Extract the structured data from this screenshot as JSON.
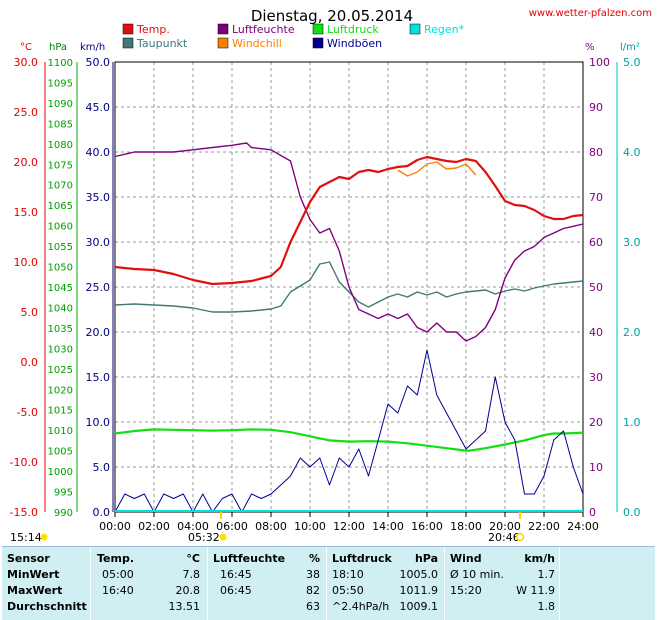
{
  "header": {
    "title": "Dienstag, 20.05.2014",
    "source": "www.wetter-pfalzen.com"
  },
  "legend": [
    {
      "label": "Temp.",
      "color": "#e01010"
    },
    {
      "label": "Luftfeuchte",
      "color": "#800080"
    },
    {
      "label": "Luftdruck",
      "color": "#10e010"
    },
    {
      "label": "Regen*",
      "color": "#00e0e0"
    },
    {
      "label": "Taupunkt",
      "color": "#407878"
    },
    {
      "label": "Windchill",
      "color": "#ff8000"
    },
    {
      "label": "Windböen",
      "color": "#000090"
    }
  ],
  "axes": {
    "temp": {
      "unit": "°C",
      "ticks": [
        "30.0",
        "25.0",
        "20.0",
        "15.0",
        "10.0",
        "5.0",
        "0.0",
        "-5.0",
        "-10.0",
        "-15.0"
      ],
      "range": [
        -15,
        30
      ]
    },
    "pressure": {
      "unit": "hPa",
      "ticks": [
        "1100",
        "1095",
        "1090",
        "1085",
        "1080",
        "1075",
        "1070",
        "1065",
        "1060",
        "1055",
        "1050",
        "1045",
        "1040",
        "1035",
        "1030",
        "1025",
        "1020",
        "1015",
        "1010",
        "1005",
        "1000",
        "995",
        "990"
      ],
      "range": [
        990,
        1100
      ]
    },
    "wind": {
      "unit": "km/h",
      "ticks": [
        "50.0",
        "45.0",
        "40.0",
        "35.0",
        "30.0",
        "25.0",
        "20.0",
        "15.0",
        "10.0",
        "5.0",
        "0.0"
      ],
      "range": [
        0,
        50
      ]
    },
    "humidity": {
      "unit": "%",
      "ticks": [
        "100",
        "90",
        "80",
        "70",
        "60",
        "50",
        "40",
        "30",
        "20",
        "10",
        "0"
      ],
      "range": [
        0,
        100
      ]
    },
    "rain": {
      "unit": "l/m²",
      "ticks": [
        "5.0",
        "4.0",
        "3.0",
        "2.0",
        "1.0",
        "0.0"
      ],
      "range": [
        0,
        5
      ]
    },
    "time": {
      "ticks": [
        "00:00",
        "02:00",
        "04:00",
        "06:00",
        "08:00",
        "10:00",
        "12:00",
        "14:00",
        "16:00",
        "18:00",
        "20:00",
        "22:00",
        "24:00"
      ]
    }
  },
  "sun": {
    "left_label": "15:14",
    "sunrise": "05:32",
    "sunset": "20:46"
  },
  "chart_data": {
    "type": "line",
    "x_unit": "hours",
    "series": [
      {
        "name": "Temp.",
        "axis": "temp",
        "color": "#e01010",
        "x": [
          0,
          1,
          2,
          3,
          4,
          5,
          6,
          7,
          8,
          8.5,
          9,
          9.5,
          10,
          10.5,
          11,
          11.5,
          12,
          12.5,
          13,
          13.5,
          14,
          14.5,
          15,
          15.5,
          16,
          16.5,
          17,
          17.5,
          18,
          18.5,
          19,
          19.5,
          20,
          20.5,
          21,
          21.5,
          22,
          22.5,
          23,
          23.5,
          24
        ],
        "y": [
          9.5,
          9.3,
          9.2,
          8.8,
          8.2,
          7.8,
          7.9,
          8.1,
          8.6,
          9.5,
          12.0,
          14.0,
          16.0,
          17.5,
          18.0,
          18.5,
          18.3,
          19.0,
          19.2,
          19.0,
          19.3,
          19.5,
          19.6,
          20.2,
          20.5,
          20.3,
          20.1,
          20.0,
          20.3,
          20.1,
          19.0,
          17.6,
          16.1,
          15.7,
          15.6,
          15.2,
          14.6,
          14.3,
          14.3,
          14.6,
          14.7
        ]
      },
      {
        "name": "Taupunkt",
        "axis": "temp",
        "color": "#407878",
        "x": [
          0,
          1,
          2,
          3,
          4,
          5,
          6,
          7,
          8,
          8.5,
          9,
          9.5,
          10,
          10.5,
          11,
          11.5,
          12,
          12.5,
          13,
          13.5,
          14,
          14.5,
          15,
          15.5,
          16,
          16.5,
          17,
          17.5,
          18,
          18.5,
          19,
          19.5,
          20,
          20.5,
          21,
          21.5,
          22,
          22.5,
          23,
          23.5,
          24
        ],
        "y": [
          5.7,
          5.8,
          5.7,
          5.6,
          5.4,
          5.0,
          5.0,
          5.1,
          5.3,
          5.6,
          7.0,
          7.6,
          8.2,
          9.8,
          10.0,
          8.0,
          7.0,
          6.0,
          5.5,
          6.0,
          6.5,
          6.8,
          6.5,
          7.0,
          6.7,
          7.0,
          6.5,
          6.8,
          7.0,
          7.1,
          7.2,
          6.8,
          7.1,
          7.3,
          7.1,
          7.4,
          7.6,
          7.8,
          7.9,
          8.0,
          8.1
        ]
      },
      {
        "name": "Luftfeuchte",
        "axis": "humidity",
        "color": "#800080",
        "x": [
          0,
          1,
          2,
          3,
          4,
          5,
          6,
          6.75,
          7,
          8,
          9,
          9.5,
          10,
          10.5,
          11,
          11.5,
          12,
          12.5,
          13,
          13.5,
          14,
          14.5,
          15,
          15.5,
          16,
          16.5,
          17,
          17.5,
          18,
          18.5,
          19,
          19.5,
          20,
          20.5,
          21,
          21.5,
          22,
          22.5,
          23,
          23.5,
          24
        ],
        "y": [
          79,
          80,
          80,
          80,
          80.5,
          81,
          81.5,
          82,
          81,
          80.5,
          78,
          70,
          65,
          62,
          63,
          58,
          50,
          45,
          44,
          43,
          44,
          43,
          44,
          41,
          40,
          42,
          40,
          40,
          38,
          39,
          41,
          45,
          52,
          56,
          58,
          59,
          61,
          62,
          63,
          63.5,
          64
        ]
      },
      {
        "name": "Luftdruck",
        "axis": "pressure",
        "color": "#10e010",
        "x": [
          0,
          1,
          2,
          3,
          4,
          5,
          6,
          7,
          8,
          9,
          10,
          11,
          12,
          13,
          14,
          15,
          16,
          17,
          18,
          18.2,
          19,
          20,
          21,
          22,
          22.5,
          23,
          24
        ],
        "y": [
          1009.2,
          1009.8,
          1010.2,
          1010.1,
          1010.0,
          1009.9,
          1010.0,
          1010.2,
          1010.1,
          1009.5,
          1008.5,
          1007.5,
          1007.2,
          1007.3,
          1007.2,
          1006.8,
          1006.2,
          1005.6,
          1005.0,
          1005.0,
          1005.6,
          1006.5,
          1007.5,
          1008.8,
          1009.2,
          1009.2,
          1009.4
        ]
      },
      {
        "name": "Windböen",
        "axis": "wind",
        "color": "#000090",
        "x": [
          0,
          0.5,
          1,
          1.5,
          2,
          2.5,
          3,
          3.5,
          4,
          4.5,
          5,
          5.5,
          6,
          6.5,
          7,
          7.5,
          8,
          8.5,
          9,
          9.5,
          10,
          10.5,
          11,
          11.5,
          12,
          12.5,
          13,
          13.5,
          14,
          14.5,
          15,
          15.5,
          16,
          16.5,
          17,
          17.5,
          18,
          18.5,
          19,
          19.5,
          20,
          20.5,
          21,
          21.5,
          22,
          22.5,
          23,
          23.5,
          24
        ],
        "y": [
          0,
          2,
          1.5,
          2,
          0,
          2,
          1.5,
          2,
          0,
          2,
          0,
          1.5,
          2,
          0,
          2,
          1.5,
          2,
          3,
          4,
          6,
          5,
          6,
          3,
          6,
          5,
          7,
          4,
          8,
          12,
          11,
          14,
          13,
          18,
          13,
          11,
          9,
          7,
          8,
          9,
          15,
          10,
          8,
          2,
          2,
          4,
          8,
          9,
          5,
          2
        ]
      },
      {
        "name": "Windchill",
        "axis": "temp",
        "color": "#ff8000",
        "x": [
          14.5,
          15,
          15.5,
          16,
          16.5,
          17,
          17.5,
          18,
          18.5
        ],
        "y": [
          19.2,
          18.6,
          19.0,
          19.8,
          20.0,
          19.3,
          19.4,
          19.8,
          18.7
        ]
      }
    ],
    "regen": 0
  },
  "stats": {
    "headers": {
      "sensor": "Sensor",
      "temp": "Temp.",
      "temp_unit": "°C",
      "hum": "Luftfeuchte",
      "hum_unit": "%",
      "press": "Luftdruck",
      "press_unit": "hPa",
      "wind": "Wind",
      "wind_unit": "km/h"
    },
    "rows": [
      {
        "label": "MinWert",
        "t_time": "05:00",
        "t_val": "7.8",
        "h_time": "16:45",
        "h_val": "38",
        "p_time": "18:10",
        "p_val": "1005.0",
        "w_time": "Ø 10 min.",
        "w_val": "1.7"
      },
      {
        "label": "MaxWert",
        "t_time": "16:40",
        "t_val": "20.8",
        "h_time": "06:45",
        "h_val": "82",
        "p_time": "05:50",
        "p_val": "1011.9",
        "w_time": "15:20",
        "w_val": "W 11.9"
      },
      {
        "label": "Durchschnitt",
        "t_time": "",
        "t_val": "13.51",
        "h_time": "",
        "h_val": "63",
        "p_time": "^2.4hPa/h",
        "p_val": "1009.1",
        "w_time": "",
        "w_val": "1.8"
      }
    ]
  }
}
